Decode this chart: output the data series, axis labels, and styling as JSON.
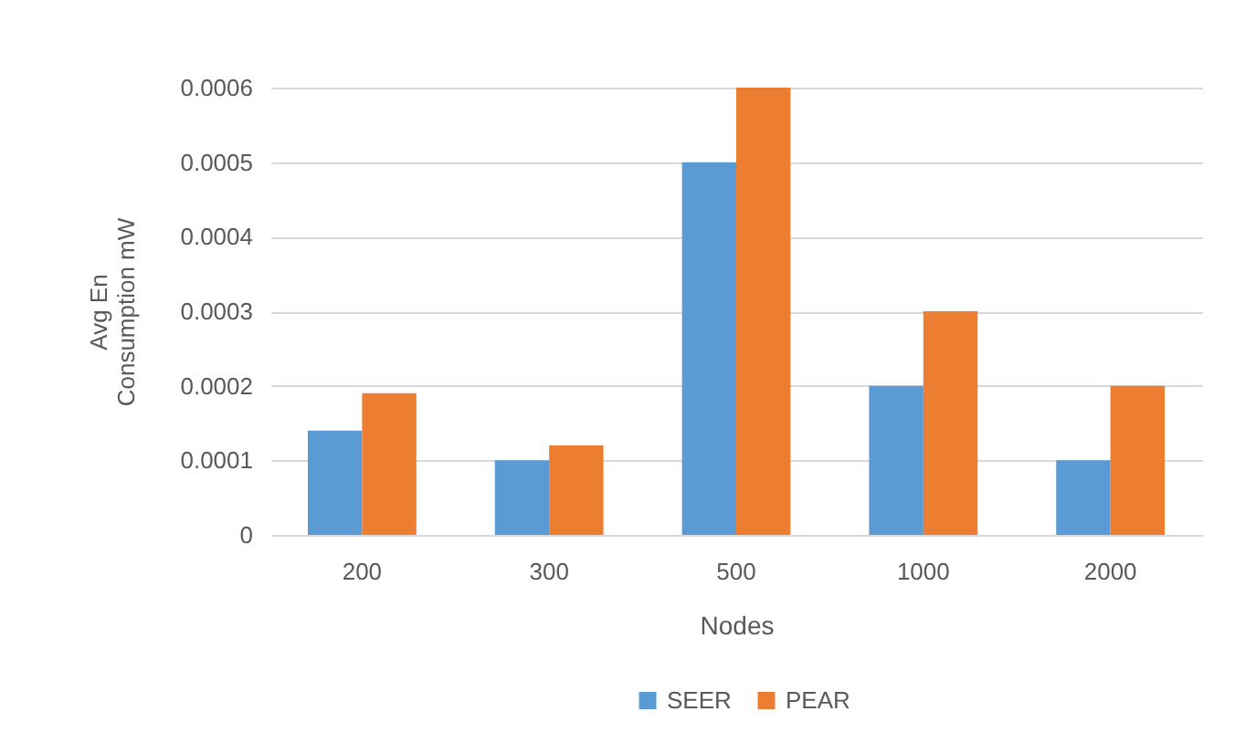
{
  "chart_data": {
    "type": "bar",
    "xlabel": "Nodes",
    "ylabel": "Avg En Consumption mW",
    "categories": [
      "200",
      "300",
      "500",
      "1000",
      "2000"
    ],
    "series": [
      {
        "name": "SEER",
        "color": "#5b9bd5",
        "values": [
          0.00014,
          0.0001,
          0.0005,
          0.0002,
          0.0001
        ]
      },
      {
        "name": "PEAR",
        "color": "#ed7d31",
        "values": [
          0.00019,
          0.00012,
          0.0006,
          0.0003,
          0.0002
        ]
      }
    ],
    "ylim": [
      0,
      0.0006
    ],
    "yticks": [
      0,
      0.0001,
      0.0002,
      0.0003,
      0.0004,
      0.0005,
      0.0006
    ],
    "grid": "y",
    "legend": "bottom"
  }
}
